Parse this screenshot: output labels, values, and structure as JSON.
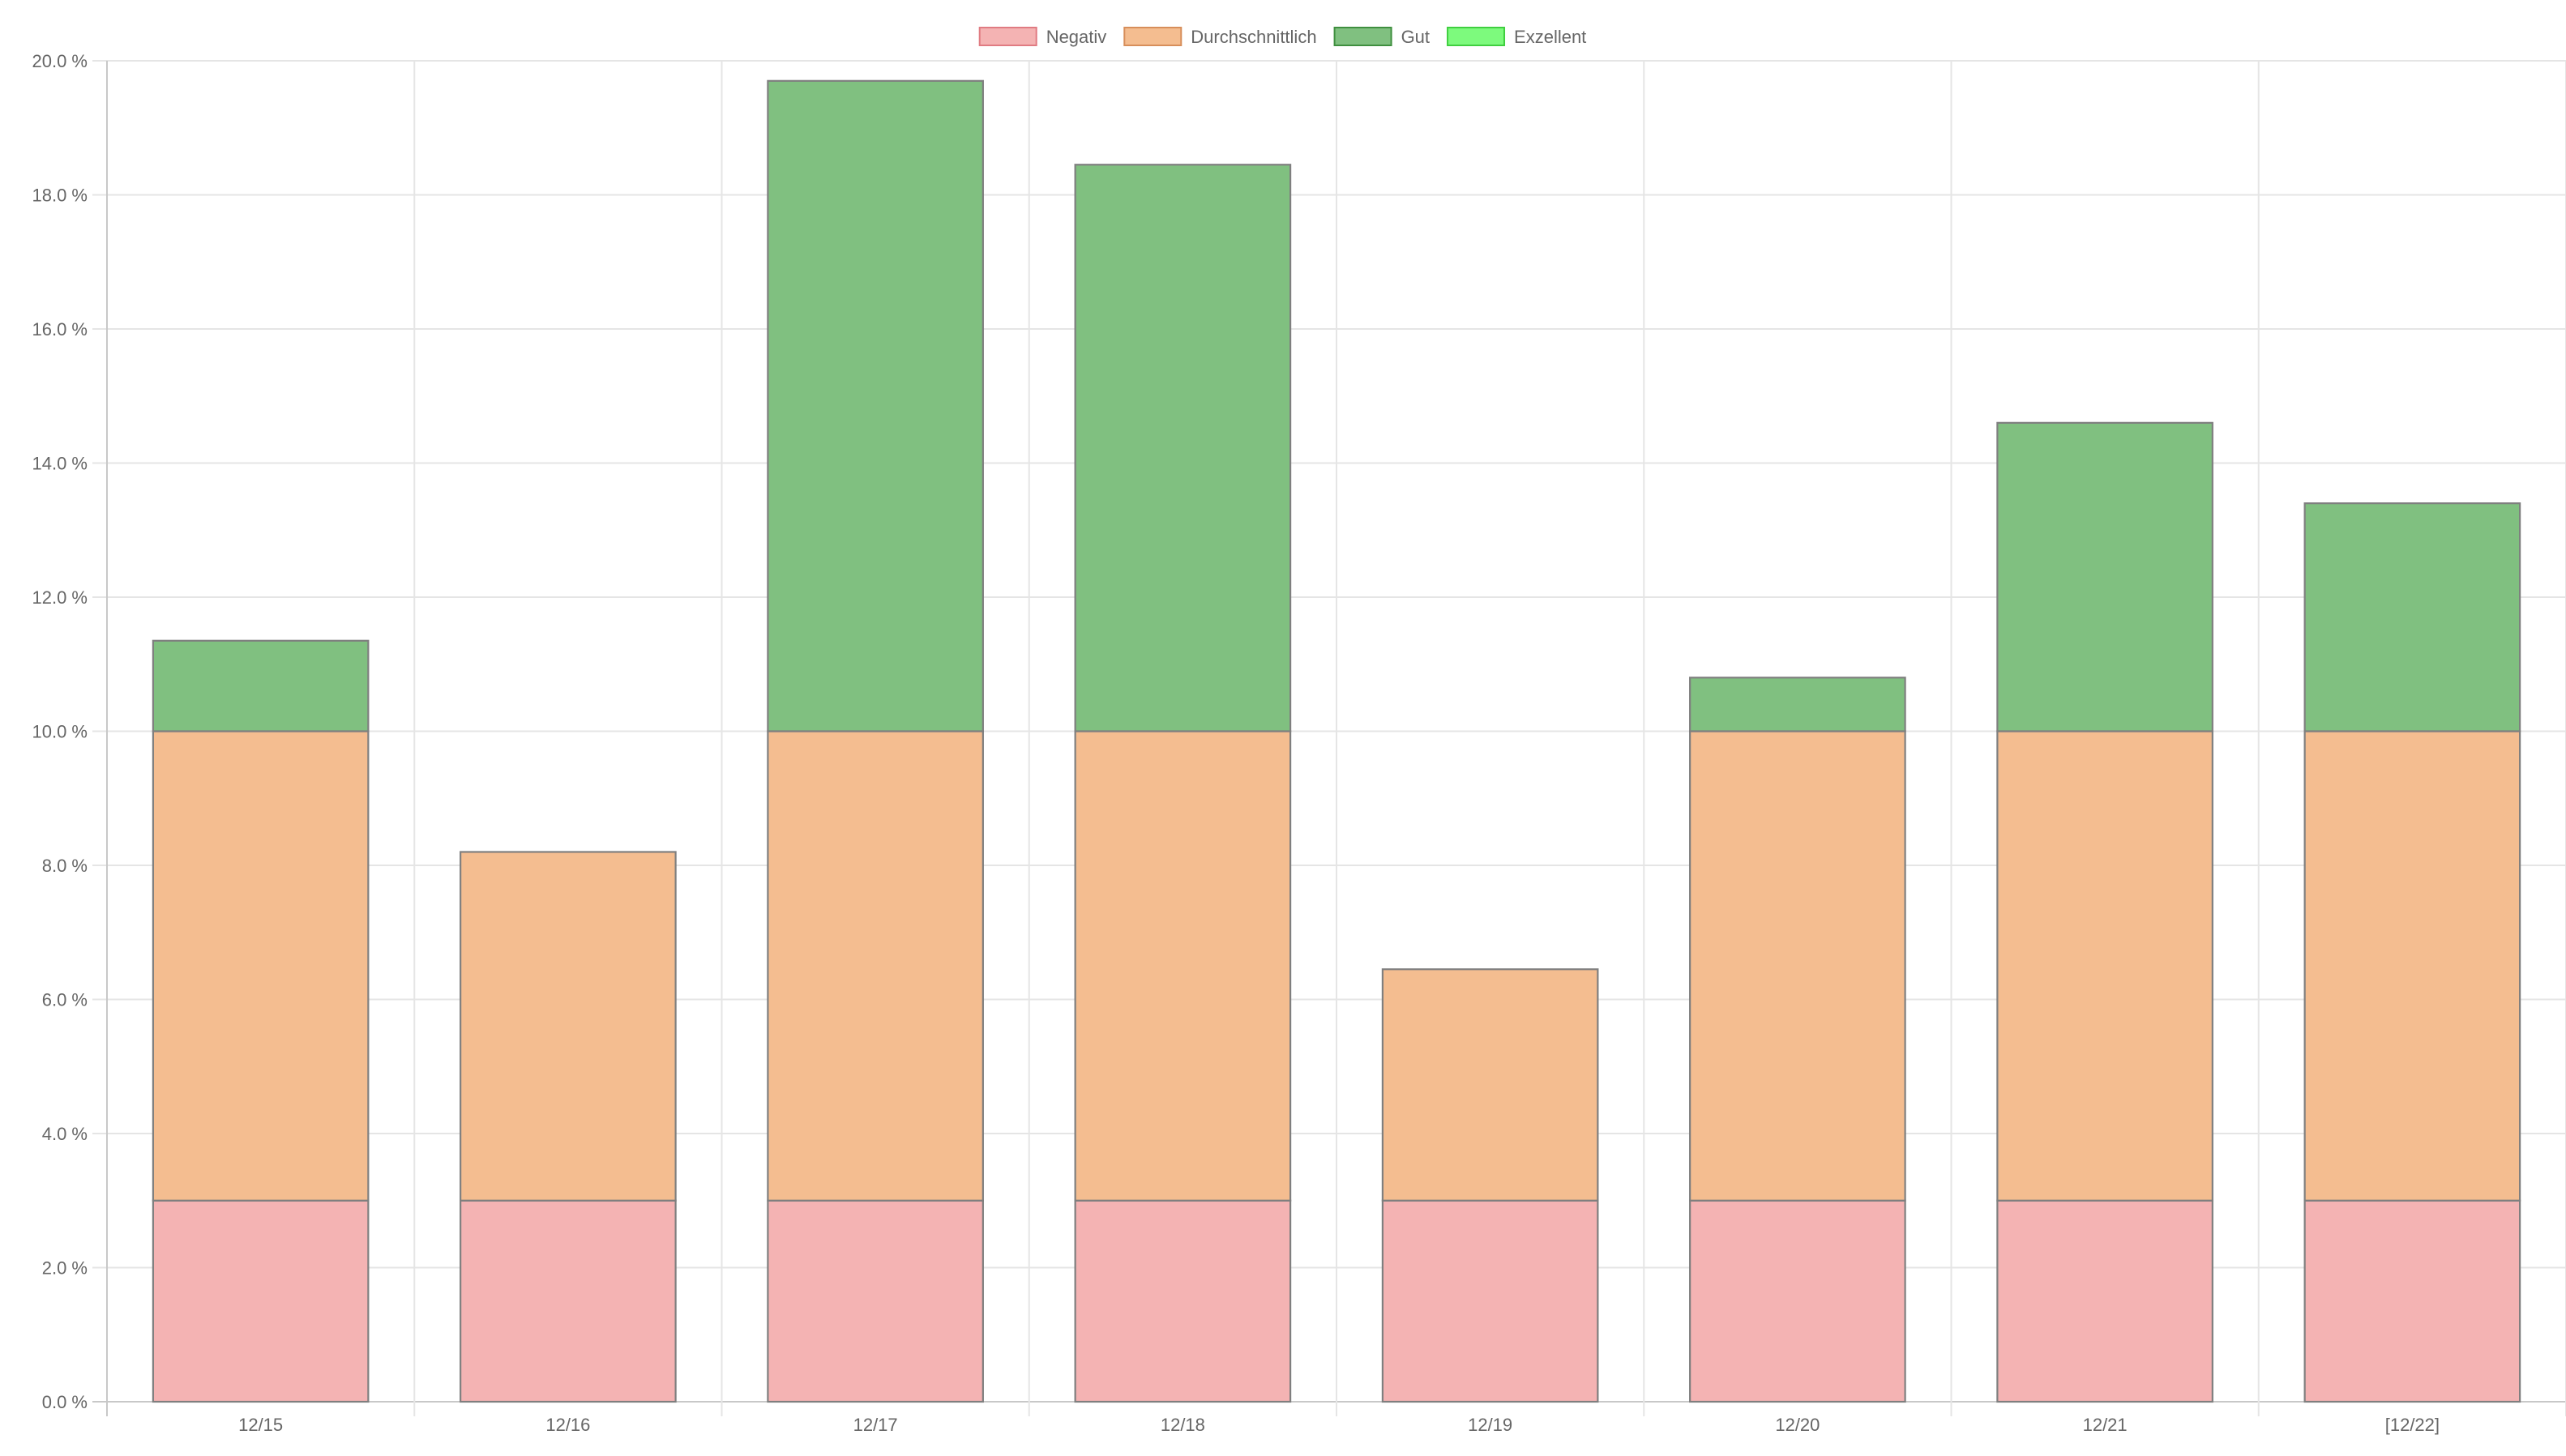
{
  "chart_data": {
    "type": "bar",
    "stacked": true,
    "categories": [
      "12/15",
      "12/16",
      "12/17",
      "12/18",
      "12/19",
      "12/20",
      "12/21",
      "[12/22]"
    ],
    "series": [
      {
        "name": "Negativ",
        "color": "#f4b3b3",
        "legend_border": "#e07b82",
        "values": [
          3.0,
          3.0,
          3.0,
          3.0,
          3.0,
          3.0,
          3.0,
          3.0
        ]
      },
      {
        "name": "Durchschnittlich",
        "color": "#f4bd90",
        "legend_border": "#d78e5a",
        "values": [
          7.0,
          5.2,
          7.0,
          7.0,
          3.45,
          7.0,
          7.0,
          7.0
        ]
      },
      {
        "name": "Gut",
        "color": "#80c080",
        "legend_border": "#3f8f3f",
        "values": [
          1.35,
          0.0,
          9.7,
          8.45,
          0.0,
          0.8,
          4.6,
          3.4
        ]
      },
      {
        "name": "Exzellent",
        "color": "#7dfa7d",
        "legend_border": "#3fcf3f",
        "values": [
          0,
          0,
          0,
          0,
          0,
          0,
          0,
          0
        ]
      }
    ],
    "y_ticks": [
      "0.0 %",
      "2.0 %",
      "4.0 %",
      "6.0 %",
      "8.0 %",
      "10.0 %",
      "12.0 %",
      "14.0 %",
      "16.0 %",
      "18.0 %",
      "20.0 %"
    ],
    "ylim": [
      0,
      20
    ],
    "grid": true,
    "legend_position": "top-center",
    "title": "",
    "xlabel": "",
    "ylabel": ""
  }
}
